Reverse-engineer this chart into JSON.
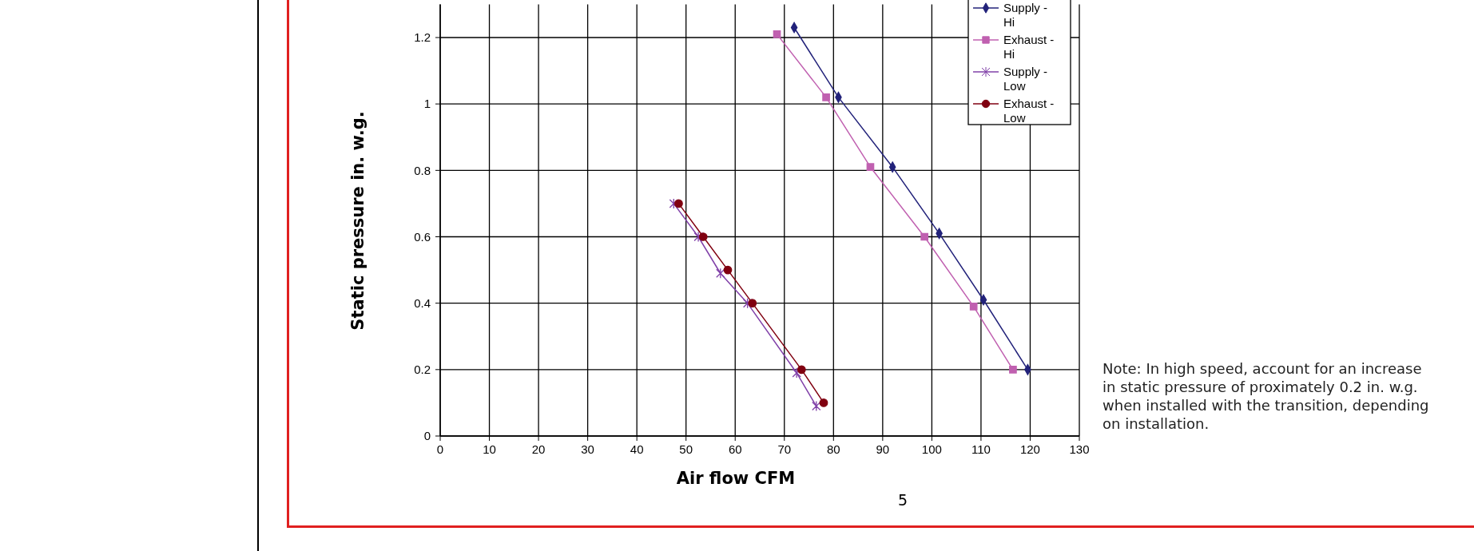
{
  "chart_data": {
    "type": "line",
    "xlabel": "Air flow CFM",
    "ylabel": "Static pressure in. w.g.",
    "xlim": [
      0,
      130
    ],
    "xticks": [
      0,
      10,
      20,
      30,
      40,
      50,
      60,
      70,
      80,
      90,
      100,
      110,
      120,
      130
    ],
    "ylim": [
      0,
      1.3
    ],
    "yticks": [
      0,
      0.2,
      0.4,
      0.6,
      0.8,
      1,
      1.2
    ],
    "grid": true,
    "legend": "top right",
    "series": [
      {
        "name": "Supply - Hi",
        "color": "#22227a",
        "marker": "diamond",
        "x": [
          72,
          81,
          92,
          101.5,
          110.5,
          119.5
        ],
        "values": [
          1.23,
          1.02,
          0.81,
          0.61,
          0.41,
          0.2
        ]
      },
      {
        "name": "Exhaust - Hi",
        "color": "#c060b0",
        "marker": "square",
        "x": [
          68.5,
          78.5,
          87.5,
          98.5,
          108.5,
          116.5
        ],
        "values": [
          1.21,
          1.02,
          0.81,
          0.6,
          0.39,
          0.2
        ]
      },
      {
        "name": "Supply - Low",
        "color": "#8040a8",
        "marker": "cross",
        "x": [
          47.5,
          52.5,
          57,
          62.5,
          72.5,
          76.5
        ],
        "values": [
          0.7,
          0.6,
          0.49,
          0.4,
          0.19,
          0.09
        ]
      },
      {
        "name": "Exhaust - Low",
        "color": "#800010",
        "marker": "circle",
        "x": [
          48.5,
          53.5,
          58.5,
          63.5,
          73.5,
          78
        ],
        "values": [
          0.7,
          0.6,
          0.5,
          0.4,
          0.2,
          0.1
        ]
      }
    ],
    "annotations": [
      "Note: In high speed, account for an increase in static pressure of proximately 0.2 in. w.g. when installed with the transition, depending on installation.",
      "5"
    ]
  }
}
